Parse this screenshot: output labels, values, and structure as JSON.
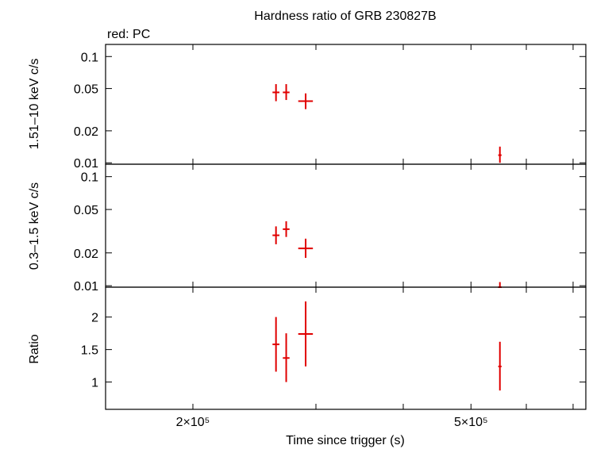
{
  "chart_data": {
    "type": "scatter",
    "title": "Hardness ratio of GRB 230827B",
    "legend": "red: PC",
    "xlabel": "Time since trigger (s)",
    "x_scale": "log",
    "xlim": [
      150000,
      730000
    ],
    "x_tick_labels": [
      {
        "value": 200000,
        "label": "2×10⁵"
      },
      {
        "value": 500000,
        "label": "5×10⁵"
      }
    ],
    "x_minor_ticks": [
      300000,
      400000,
      600000,
      700000
    ],
    "series_color": "#e00000",
    "panels": [
      {
        "name": "hard",
        "ylabel": "1.51–10 keV c/s",
        "y_scale": "log",
        "ylim": [
          0.0097,
          0.13
        ],
        "y_ticks": [
          {
            "value": 0.01,
            "label": "0.01"
          },
          {
            "value": 0.02,
            "label": "0.02"
          },
          {
            "value": 0.05,
            "label": "0.05"
          },
          {
            "value": 0.1,
            "label": "0.1"
          }
        ],
        "points": [
          {
            "x": 263000,
            "xerr": 3000,
            "y": 0.046,
            "ylo": 0.038,
            "yhi": 0.055
          },
          {
            "x": 272000,
            "xerr": 3000,
            "y": 0.046,
            "ylo": 0.039,
            "yhi": 0.055
          },
          {
            "x": 290000,
            "xerr": 7000,
            "y": 0.038,
            "ylo": 0.032,
            "yhi": 0.045
          },
          {
            "x": 550000,
            "xerr": 3000,
            "y": 0.0118,
            "ylo": 0.01,
            "yhi": 0.0142
          }
        ]
      },
      {
        "name": "soft",
        "ylabel": "0.3–1.5 keV c/s",
        "y_scale": "log",
        "ylim": [
          0.0097,
          0.13
        ],
        "y_ticks": [
          {
            "value": 0.01,
            "label": "0.01"
          },
          {
            "value": 0.02,
            "label": "0.02"
          },
          {
            "value": 0.05,
            "label": "0.05"
          },
          {
            "value": 0.1,
            "label": "0.1"
          }
        ],
        "points": [
          {
            "x": 263000,
            "xerr": 3000,
            "y": 0.029,
            "ylo": 0.024,
            "yhi": 0.035
          },
          {
            "x": 272000,
            "xerr": 3000,
            "y": 0.033,
            "ylo": 0.028,
            "yhi": 0.039
          },
          {
            "x": 290000,
            "xerr": 7000,
            "y": 0.022,
            "ylo": 0.018,
            "yhi": 0.027
          },
          {
            "x": 550000,
            "xerr": 3000,
            "y": 0.0095,
            "ylo": 0.0085,
            "yhi": 0.0108
          }
        ]
      },
      {
        "name": "ratio",
        "ylabel": "Ratio",
        "y_scale": "linear",
        "ylim": [
          0.58,
          2.46
        ],
        "y_ticks": [
          {
            "value": 1,
            "label": "1"
          },
          {
            "value": 1.5,
            "label": "1.5"
          },
          {
            "value": 2,
            "label": "2"
          }
        ],
        "points": [
          {
            "x": 263000,
            "xerr": 3000,
            "y": 1.58,
            "ylo": 1.16,
            "yhi": 2.0
          },
          {
            "x": 272000,
            "xerr": 3000,
            "y": 1.37,
            "ylo": 1.0,
            "yhi": 1.75
          },
          {
            "x": 290000,
            "xerr": 7000,
            "y": 1.74,
            "ylo": 1.24,
            "yhi": 2.24
          },
          {
            "x": 550000,
            "xerr": 3000,
            "y": 1.24,
            "ylo": 0.87,
            "yhi": 1.62
          }
        ]
      }
    ]
  }
}
